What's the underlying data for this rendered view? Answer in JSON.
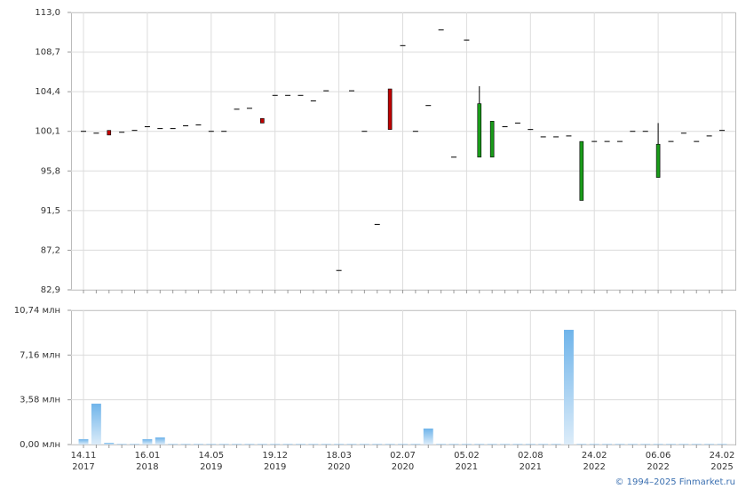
{
  "chart_data": [
    {
      "type": "candlestick",
      "ylim": [
        82.9,
        113.0
      ],
      "yticks": [
        {
          "value": 82.9,
          "label": "82,9"
        },
        {
          "value": 87.2,
          "label": "87,2"
        },
        {
          "value": 91.5,
          "label": "91,5"
        },
        {
          "value": 95.8,
          "label": "95,8"
        },
        {
          "value": 100.1,
          "label": "100,1"
        },
        {
          "value": 104.4,
          "label": "104,4"
        },
        {
          "value": 108.7,
          "label": "108,7"
        },
        {
          "value": 113.0,
          "label": "113,0"
        }
      ],
      "up_color": "#1a9c1a",
      "down_color": "#c00000",
      "flat_color": "#000000",
      "open": [
        100.1,
        99.9,
        100.2,
        100.0,
        100.2,
        100.6,
        100.4,
        100.4,
        100.7,
        100.8,
        100.1,
        100.1,
        102.5,
        102.6,
        101.5,
        104.0,
        104.0,
        104.0,
        103.4,
        104.5,
        85.0,
        104.5,
        100.1,
        90.0,
        104.7,
        109.4,
        100.1,
        102.9,
        111.1,
        97.3,
        110.0,
        97.3,
        97.3,
        100.6,
        101.0,
        100.3,
        99.5,
        99.5,
        99.6,
        92.6,
        99.0,
        99.0,
        99.0,
        100.1,
        100.1,
        95.1,
        99.0,
        99.9,
        99.0,
        99.6,
        100.2
      ],
      "high": [
        100.1,
        99.9,
        100.2,
        100.0,
        100.2,
        100.6,
        100.4,
        100.4,
        100.7,
        100.8,
        100.1,
        100.1,
        102.5,
        102.6,
        101.5,
        104.0,
        104.0,
        104.0,
        103.4,
        104.5,
        85.0,
        104.5,
        100.1,
        90.0,
        104.7,
        109.4,
        100.1,
        102.9,
        111.1,
        97.3,
        110.0,
        105.0,
        101.2,
        100.6,
        101.0,
        100.3,
        99.5,
        99.5,
        99.6,
        99.0,
        99.0,
        99.0,
        99.0,
        100.1,
        100.1,
        101.0,
        99.0,
        99.9,
        99.0,
        99.6,
        100.2
      ],
      "low": [
        100.1,
        99.9,
        99.7,
        100.0,
        100.2,
        100.6,
        100.4,
        100.4,
        100.7,
        100.8,
        100.1,
        100.1,
        102.5,
        102.6,
        101.0,
        104.0,
        104.0,
        104.0,
        103.4,
        104.5,
        85.0,
        104.5,
        100.1,
        90.0,
        100.3,
        109.4,
        100.1,
        102.9,
        111.1,
        97.3,
        110.0,
        97.3,
        97.3,
        100.6,
        101.0,
        100.3,
        99.5,
        99.5,
        99.6,
        92.6,
        99.0,
        99.0,
        99.0,
        100.1,
        100.1,
        95.1,
        99.0,
        99.9,
        99.0,
        99.6,
        100.2
      ],
      "close": [
        100.1,
        99.9,
        99.7,
        100.0,
        100.2,
        100.6,
        100.4,
        100.4,
        100.7,
        100.8,
        100.1,
        100.1,
        102.5,
        102.6,
        101.0,
        104.0,
        104.0,
        104.0,
        103.4,
        104.5,
        85.0,
        104.5,
        100.1,
        90.0,
        100.3,
        109.4,
        100.1,
        102.9,
        111.1,
        97.3,
        110.0,
        103.1,
        101.2,
        100.6,
        101.0,
        100.3,
        99.5,
        99.5,
        99.6,
        99.0,
        99.0,
        99.0,
        99.0,
        100.1,
        100.1,
        98.7,
        99.0,
        99.9,
        99.0,
        99.6,
        100.2
      ]
    },
    {
      "type": "bar",
      "ylim": [
        0,
        10.74
      ],
      "yticks": [
        {
          "value": 0,
          "label": "0,00 млн"
        },
        {
          "value": 3.58,
          "label": "3,58 млн"
        },
        {
          "value": 7.16,
          "label": "7,16 млн"
        },
        {
          "value": 10.74,
          "label": "10,74 млн"
        }
      ],
      "color": "#8cc4ee",
      "categories": [
        "14.11 2017",
        null,
        null,
        null,
        null,
        "16.01 2018",
        null,
        null,
        null,
        null,
        "14.05 2019",
        null,
        null,
        null,
        null,
        "19.12 2019",
        null,
        null,
        null,
        null,
        "18.03 2020",
        null,
        null,
        null,
        null,
        "02.07 2020",
        null,
        null,
        null,
        null,
        "05.02 2021",
        null,
        null,
        null,
        null,
        "02.08 2021",
        null,
        null,
        null,
        null,
        "24.02 2022",
        null,
        null,
        null,
        null,
        "06.06 2022",
        null,
        null,
        null,
        null,
        "24.02 2025"
      ],
      "values": [
        0.43,
        3.27,
        0.14,
        0.05,
        0.05,
        0.43,
        0.57,
        0.05,
        0.05,
        0.05,
        0.05,
        0.05,
        0.05,
        0.05,
        0.05,
        0.05,
        0.05,
        0.05,
        0.05,
        0.05,
        0.05,
        0.05,
        0.05,
        0.05,
        0.05,
        0.05,
        0.05,
        1.28,
        0.05,
        0.05,
        0.05,
        0.05,
        0.05,
        0.05,
        0.05,
        0.05,
        0.05,
        0.05,
        9.18,
        0.05,
        0.05,
        0.05,
        0.05,
        0.05,
        0.05,
        0.05,
        0.05,
        0.05,
        0.05,
        0.05,
        0.05
      ]
    }
  ],
  "footer": "© 1994–2025 Finmarket.ru"
}
